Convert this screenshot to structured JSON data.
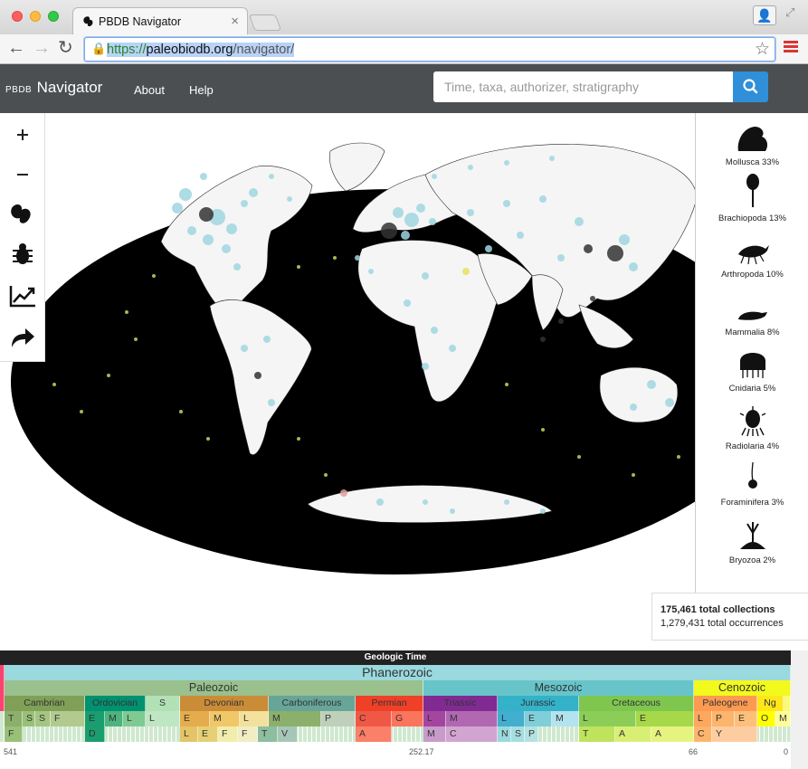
{
  "browser": {
    "tab_title": "PBDB Navigator",
    "url_protocol": "https://",
    "url_host": "paleobiodb.org",
    "url_path": "/navigator/"
  },
  "app": {
    "brand_small": "PBDB",
    "brand_big": "Navigator",
    "nav": [
      "About",
      "Help"
    ],
    "search_placeholder": "Time, taxa, authorizer, stratigraphy"
  },
  "map_tools": [
    "zoom-in-icon",
    "zoom-out-icon",
    "paleo-map-icon",
    "taxa-filter-icon",
    "diversity-curve-icon",
    "share-icon"
  ],
  "taxa": [
    {
      "label": "Mollusca 33%"
    },
    {
      "label": "Brachiopoda 13%"
    },
    {
      "label": "Arthropoda 10%"
    },
    {
      "label": "Mammalia 8%"
    },
    {
      "label": "Cnidaria 5%"
    },
    {
      "label": "Radiolaria 4%"
    },
    {
      "label": "Foraminifera 3%"
    },
    {
      "label": "Bryozoa 2%"
    }
  ],
  "totals": {
    "collections": "175,461 total collections",
    "occurrences": "1,279,431 total occurrences"
  },
  "geologic_time": {
    "title": "Geologic Time",
    "eon": "Phanerozoic",
    "eras": [
      "Paleozoic",
      "Mesozoic",
      "Cenozoic"
    ],
    "periods": [
      "Cambrian",
      "Ordovician",
      "S",
      "Devonian",
      "Carboniferous",
      "Permian",
      "Triassic",
      "Jurassic",
      "Cretaceous",
      "Paleogene",
      "Ng"
    ],
    "epoch_row": [
      "T",
      "S",
      "S",
      "F",
      "E",
      "M",
      "L",
      "L",
      "E",
      "M",
      "L",
      "M",
      "P",
      "C",
      "G",
      "L",
      "M",
      "L",
      "E",
      "M",
      "L",
      "E",
      "L",
      "P",
      "E",
      "O",
      "M"
    ],
    "age_row": [
      "F",
      "D",
      "L",
      "E",
      "F",
      "F",
      "T",
      "V",
      "A",
      "M",
      "C",
      "N",
      "S",
      "P",
      "T",
      "A",
      "A",
      "C",
      "Y"
    ],
    "ticks": [
      "541",
      "252.17",
      "66",
      "0"
    ]
  },
  "colors": {
    "appbar": "#4c4f52",
    "accent": "#2f8fd8",
    "map_land": "#f4f4f4",
    "map_ocean": "#000000",
    "point_blue": "#9fd6e0"
  }
}
